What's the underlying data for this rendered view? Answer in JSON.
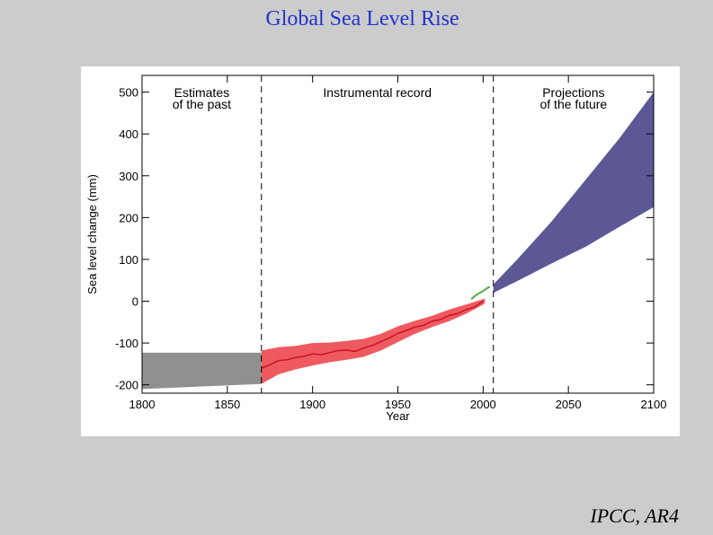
{
  "slide": {
    "title": "Global Sea Level Rise",
    "credit": "IPCC, AR4"
  },
  "colors": {
    "title": "#2233cc",
    "past_band": "#8f918f",
    "instrumental_band": "#ee5a60",
    "instrumental_line": "#cc1122",
    "satellite_line": "#55aa44",
    "projection_band": "#5c5896"
  },
  "chart_data": {
    "type": "area",
    "title": "",
    "xlabel": "Year",
    "ylabel": "Sea level change (mm)",
    "xlim": [
      1800,
      2100
    ],
    "ylim": [
      -220,
      540
    ],
    "xticks": [
      1800,
      1850,
      1900,
      1950,
      2000,
      2050,
      2100
    ],
    "yticks": [
      -200,
      -100,
      0,
      100,
      200,
      300,
      400,
      500
    ],
    "grid": false,
    "dividers": [
      1870,
      2006
    ],
    "region_labels": [
      {
        "lines": [
          "Estimates",
          "of the past"
        ],
        "x": 1835
      },
      {
        "lines": [
          "Instrumental record"
        ],
        "x": 1938
      },
      {
        "lines": [
          "Projections",
          "of the future"
        ],
        "x": 2053
      }
    ],
    "series": [
      {
        "kind": "band",
        "key": "past",
        "x": [
          1800,
          1870
        ],
        "upper": [
          -123,
          -123
        ],
        "lower": [
          -210,
          -198
        ]
      },
      {
        "kind": "band",
        "key": "instrumental",
        "x": [
          1870,
          1880,
          1890,
          1900,
          1910,
          1920,
          1930,
          1940,
          1950,
          1960,
          1970,
          1980,
          1990,
          2000,
          2001
        ],
        "upper": [
          -118,
          -110,
          -107,
          -100,
          -99,
          -95,
          -90,
          -78,
          -60,
          -47,
          -35,
          -20,
          -8,
          5,
          7
        ],
        "lower": [
          -198,
          -175,
          -163,
          -154,
          -146,
          -140,
          -133,
          -118,
          -98,
          -78,
          -62,
          -48,
          -30,
          -8,
          -5
        ]
      },
      {
        "kind": "line",
        "key": "instrumental",
        "x": [
          1870,
          1875,
          1880,
          1885,
          1890,
          1895,
          1900,
          1905,
          1910,
          1915,
          1920,
          1925,
          1930,
          1935,
          1940,
          1945,
          1950,
          1955,
          1960,
          1965,
          1970,
          1975,
          1980,
          1985,
          1990,
          1995,
          2000
        ],
        "y": [
          -160,
          -152,
          -142,
          -140,
          -135,
          -132,
          -126,
          -128,
          -123,
          -118,
          -117,
          -120,
          -112,
          -106,
          -97,
          -88,
          -77,
          -70,
          -62,
          -58,
          -48,
          -44,
          -34,
          -30,
          -20,
          -14,
          0
        ]
      },
      {
        "kind": "line",
        "key": "satellite",
        "x": [
          1993,
          1996,
          1999,
          2002,
          2004
        ],
        "y": [
          5,
          15,
          22,
          30,
          35
        ]
      },
      {
        "kind": "band",
        "key": "projection",
        "x": [
          2006,
          2020,
          2040,
          2060,
          2080,
          2100
        ],
        "upper": [
          40,
          100,
          190,
          290,
          390,
          500
        ],
        "lower": [
          20,
          48,
          90,
          130,
          178,
          225
        ]
      }
    ]
  }
}
